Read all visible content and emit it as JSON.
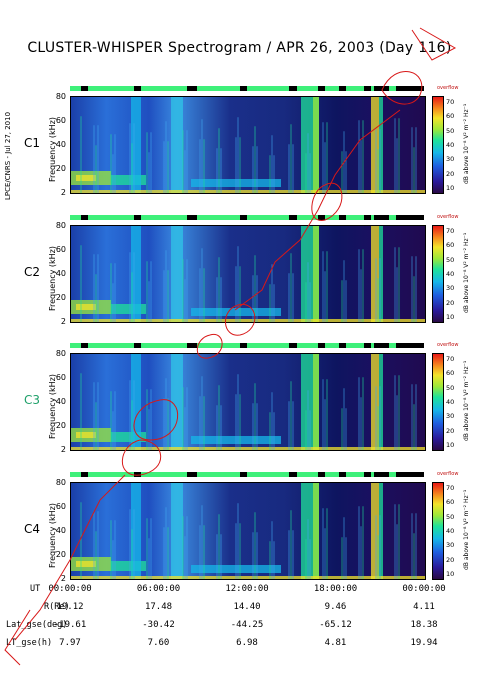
{
  "title": "CLUSTER-WHISPER Spectrogram / APR 26, 2003 (Day 116)",
  "credit": "LPCE/CNRS - Jul 27, 2010",
  "chart_data": {
    "type": "heatmap",
    "title": "CLUSTER-WHISPER Spectrogram / APR 26, 2003 (Day 116)",
    "panels": [
      {
        "name": "C1",
        "name_color": "#000000"
      },
      {
        "name": "C2",
        "name_color": "#000000"
      },
      {
        "name": "C3",
        "name_color": "#1fa06a"
      },
      {
        "name": "C4",
        "name_color": "#000000"
      }
    ],
    "ylabel": "Frequency (kHz)",
    "ylim": [
      2,
      80
    ],
    "y_ticks": [
      "80",
      "60",
      "40",
      "20",
      "2"
    ],
    "colorbar": {
      "label": "dB above 10⁻⁸ V² m⁻² Hz⁻¹",
      "overflow_label": "overflow",
      "range": [
        10,
        70
      ],
      "ticks": [
        "70",
        "60",
        "50",
        "40",
        "30",
        "20",
        "10"
      ]
    },
    "x_ticks": [
      "00:00:00",
      "06:00:00",
      "12:00:00",
      "18:00:00",
      "00:00:00"
    ],
    "ephemeris": {
      "rows": [
        {
          "label": "UT",
          "values": [
            "00:00:00",
            "06:00:00",
            "12:00:00",
            "18:00:00",
            "00:00:00"
          ]
        },
        {
          "label": "R(Re)",
          "values": [
            "19.12",
            "17.48",
            "14.40",
            "9.46",
            "4.11"
          ]
        },
        {
          "label": "Lat_gse(deg)",
          "values": [
            "-19.61",
            "-30.42",
            "-44.25",
            "-65.12",
            "18.38"
          ]
        },
        {
          "label": "LT_gse(h)",
          "values": [
            "7.97",
            "7.60",
            "6.98",
            "4.81",
            "19.94"
          ]
        }
      ]
    }
  }
}
